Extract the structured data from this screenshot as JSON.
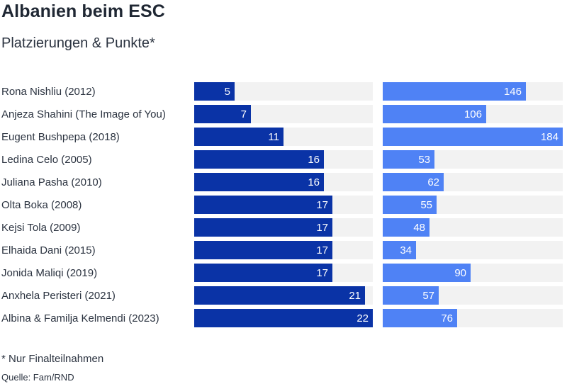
{
  "title": "Albanien beim ESC",
  "subtitle": "Platzierungen & Punkte*",
  "footnote": "* Nur Finalteilnahmen",
  "source": "Quelle: Fam/RND",
  "colors": {
    "placement": "#0a33a6",
    "points": "#4f82f5",
    "track": "#f2f2f2",
    "value_text": "#ffffff"
  },
  "chart_data": [
    {
      "type": "bar",
      "orientation": "horizontal",
      "categories": [
        "Rona Nishliu (2012)",
        "Anjeza Shahini (The Image of You)",
        "Eugent Bushpepa (2018)",
        "Ledina Celo (2005)",
        "Juliana Pasha (2010)",
        "Olta Boka (2008)",
        "Kejsi Tola (2009)",
        "Elhaida Dani (2015)",
        "Jonida Maliqi (2019)",
        "Anxhela Peristeri (2021)",
        "Albina & Familja Kelmendi (2023)"
      ],
      "values": [
        5,
        7,
        11,
        16,
        16,
        17,
        17,
        17,
        17,
        21,
        22
      ],
      "xlim": [
        0,
        22
      ],
      "color": "#0a33a6"
    },
    {
      "type": "bar",
      "orientation": "horizontal",
      "categories": [
        "Rona Nishliu (2012)",
        "Anjeza Shahini (The Image of You)",
        "Eugent Bushpepa (2018)",
        "Ledina Celo (2005)",
        "Juliana Pasha (2010)",
        "Olta Boka (2008)",
        "Kejsi Tola (2009)",
        "Elhaida Dani (2015)",
        "Jonida Maliqi (2019)",
        "Anxhela Peristeri (2021)",
        "Albina & Familja Kelmendi (2023)"
      ],
      "values": [
        146,
        106,
        184,
        53,
        62,
        55,
        48,
        34,
        90,
        57,
        76
      ],
      "xlim": [
        0,
        184
      ],
      "color": "#4f82f5"
    }
  ]
}
